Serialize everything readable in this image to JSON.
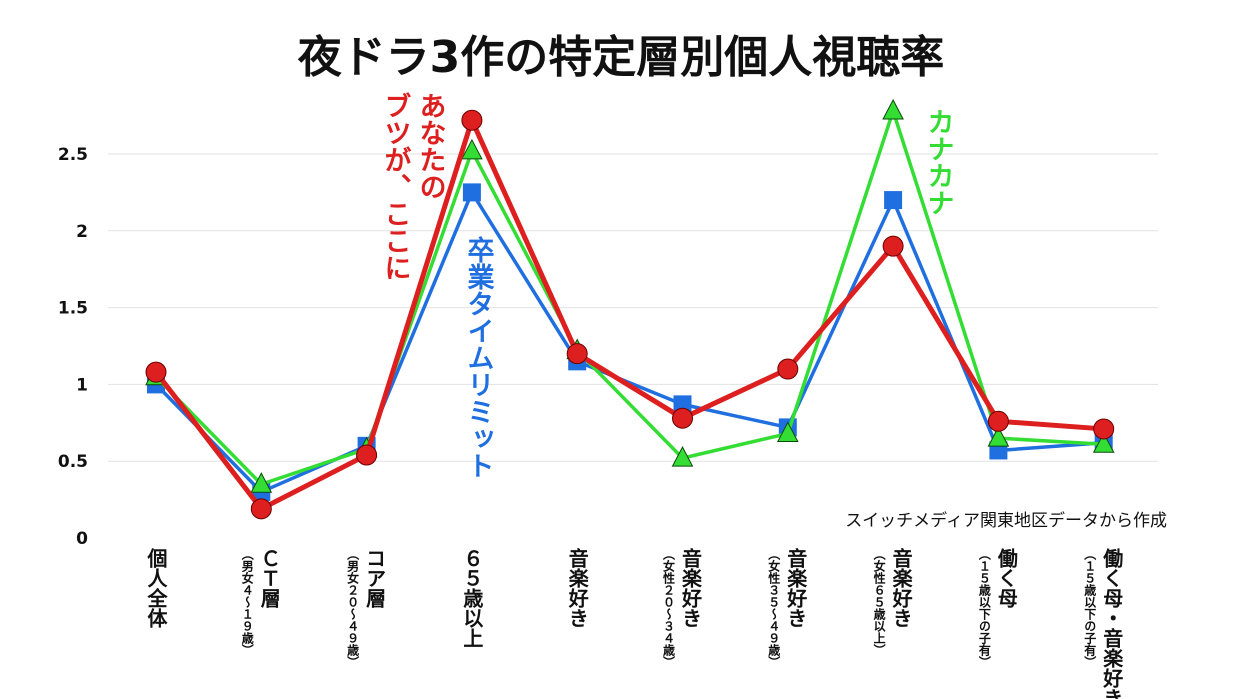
{
  "chart_data": {
    "type": "line",
    "title": "夜ドラ3作の特定層別個人視聴率",
    "source_note": "スイッチメディア関東地区データから作成",
    "ylim": [
      0,
      2.8
    ],
    "yticks": [
      "0",
      "0.5",
      "1",
      "1.5",
      "2",
      "2.5"
    ],
    "ytick_values": [
      0,
      0.5,
      1,
      1.5,
      2,
      2.5
    ],
    "grid": true,
    "categories": [
      {
        "main": "個人全体",
        "sub": ""
      },
      {
        "main": "ＣＴ層",
        "sub": "（男女４〜１９歳）"
      },
      {
        "main": "コア層",
        "sub": "（男女２０〜４９歳）"
      },
      {
        "main": "６５歳以上",
        "sub": ""
      },
      {
        "main": "音楽好き",
        "sub": ""
      },
      {
        "main": "音楽好き",
        "sub": "（女性２０〜３４歳）"
      },
      {
        "main": "音楽好き",
        "sub": "（女性３５〜４９歳）"
      },
      {
        "main": "音楽好き",
        "sub": "（女性６５歳以上）"
      },
      {
        "main": "働く母",
        "sub": "（１５歳以下の子有）"
      },
      {
        "main": "働く母・音楽好き",
        "sub": "（１５歳以下の子有）"
      }
    ],
    "series": [
      {
        "name": "卒業タイムリミット",
        "color": "#1f6fe0",
        "marker": "square",
        "values": [
          1.0,
          0.3,
          0.6,
          2.25,
          1.15,
          0.87,
          0.72,
          2.2,
          0.57,
          0.62
        ]
      },
      {
        "name": "カナカナ",
        "color": "#33dd33",
        "marker": "triangle",
        "values": [
          1.05,
          0.35,
          0.58,
          2.52,
          1.22,
          0.52,
          0.68,
          2.78,
          0.65,
          0.61
        ]
      },
      {
        "name": "あなたのブツが、ここに",
        "color": "#dd1f1f",
        "marker": "circle",
        "values": [
          1.08,
          0.19,
          0.54,
          2.72,
          1.2,
          0.78,
          1.1,
          1.9,
          0.76,
          0.71
        ]
      }
    ],
    "series_labels": [
      {
        "series": 2,
        "lines": [
          "あなたの",
          "ブツが、ここに"
        ]
      },
      {
        "series": 0,
        "lines": [
          "卒業タイムリミット"
        ]
      },
      {
        "series": 1,
        "lines": [
          "カナカナ"
        ]
      }
    ]
  }
}
